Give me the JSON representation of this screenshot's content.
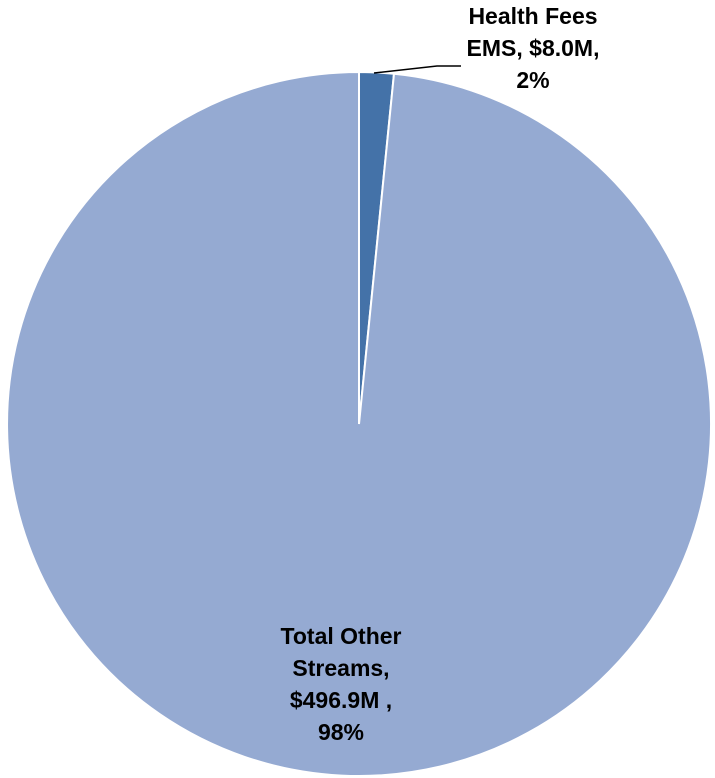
{
  "chart_data": {
    "type": "pie",
    "title": "",
    "slices": [
      {
        "name": "Health Fees EMS",
        "value_label": "$8.0M",
        "value": 8.0,
        "percent_label": "2%",
        "color": "#4472a8",
        "label_lines": [
          "Health Fees",
          "EMS,  $8.0M,",
          "2%"
        ]
      },
      {
        "name": "Total Other Streams",
        "value_label": "$496.9M",
        "value": 496.9,
        "percent_label": "98%",
        "color": "#95aad2",
        "label_lines": [
          "Total Other",
          "Streams,",
          "$496.9M ,",
          "98%"
        ]
      }
    ],
    "start_angle_deg": 0,
    "direction": "clockwise",
    "legend": "none",
    "slice_border_color": "#ffffff"
  }
}
